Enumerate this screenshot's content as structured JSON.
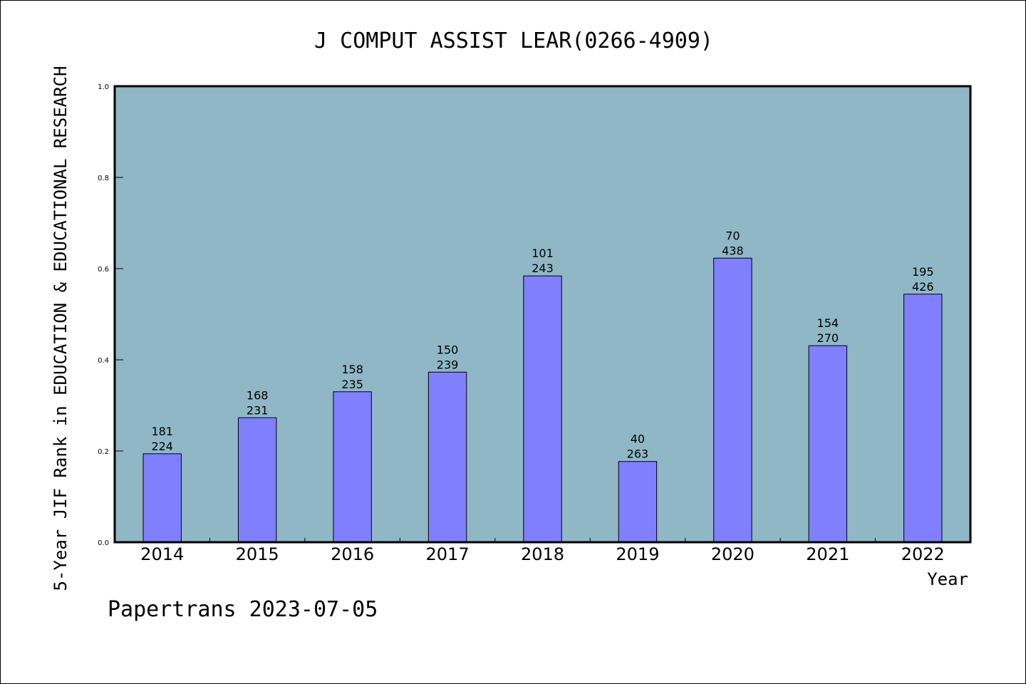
{
  "chart_data": {
    "type": "bar",
    "title": "J COMPUT ASSIST LEAR(0266-4909)",
    "xlabel": "Year",
    "ylabel": "5-Year JIF Rank in EDUCATION & EDUCATIONAL RESEARCH",
    "ylim": [
      0,
      1.0
    ],
    "yticks": [
      "0.0",
      "0.2",
      "0.4",
      "0.6",
      "0.8",
      "1.0"
    ],
    "grid": false,
    "categories": [
      "2014",
      "2015",
      "2016",
      "2017",
      "2018",
      "2019",
      "2020",
      "2021",
      "2022"
    ],
    "values": [
      0.194,
      0.273,
      0.33,
      0.373,
      0.584,
      0.177,
      0.623,
      0.431,
      0.544
    ],
    "rank_labels": [
      "181",
      "168",
      "158",
      "150",
      "101",
      "40",
      "70",
      "154",
      "195"
    ],
    "total_labels": [
      "224",
      "231",
      "235",
      "239",
      "243",
      "263",
      "438",
      "270",
      "426"
    ],
    "colors": {
      "bar": "#8080ff",
      "plot_bg": "#8fb7c6"
    }
  },
  "footer": "Papertrans 2023-07-05"
}
